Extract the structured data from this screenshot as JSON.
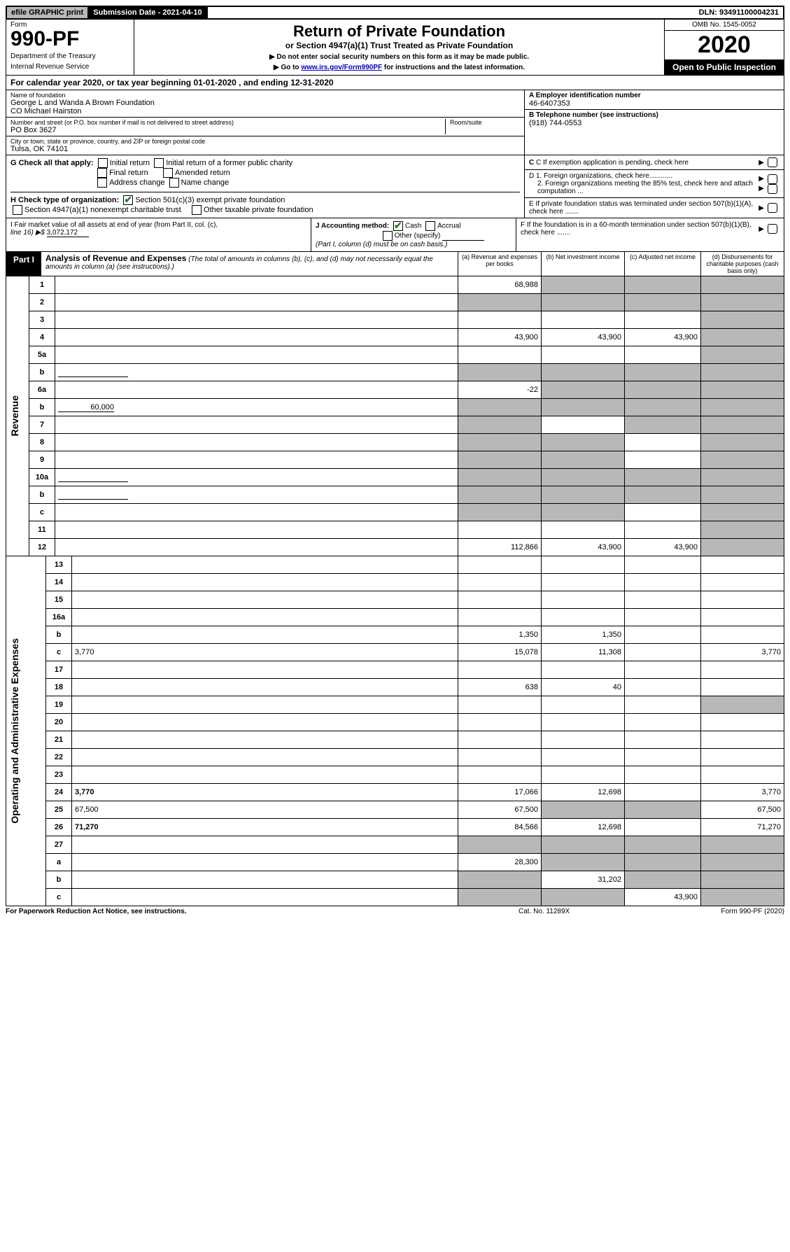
{
  "top": {
    "efile": "efile GRAPHIC print",
    "subdate_label": "Submission Date - 2021-04-10",
    "dln": "DLN: 93491100004231"
  },
  "header": {
    "form_label": "Form",
    "form_number": "990-PF",
    "dept1": "Department of the Treasury",
    "dept2": "Internal Revenue Service",
    "title": "Return of Private Foundation",
    "subtitle": "or Section 4947(a)(1) Trust Treated as Private Foundation",
    "instr1": "▶ Do not enter social security numbers on this form as it may be made public.",
    "instr2_pre": "▶ Go to ",
    "instr2_link": "www.irs.gov/Form990PF",
    "instr2_post": " for instructions and the latest information.",
    "omb": "OMB No. 1545-0052",
    "year": "2020",
    "open": "Open to Public Inspection"
  },
  "cal": {
    "text_pre": "For calendar year 2020, or tax year beginning ",
    "begin": "01-01-2020",
    "text_mid": " , and ending ",
    "end": "12-31-2020"
  },
  "id": {
    "name_label": "Name of foundation",
    "name1": "George L and Wanda A Brown Foundation",
    "name2": "CO Michael Hairston",
    "addr_label": "Number and street (or P.O. box number if mail is not delivered to street address)",
    "addr": "PO Box 3627",
    "room_label": "Room/suite",
    "city_label": "City or town, state or province, country, and ZIP or foreign postal code",
    "city": "Tulsa, OK  74101",
    "ein_label": "A Employer identification number",
    "ein": "46-6407353",
    "tel_label": "B Telephone number (see instructions)",
    "tel": "(918) 744-0553",
    "c_label": "C If exemption application is pending, check here",
    "d1": "D 1. Foreign organizations, check here............",
    "d2": "2. Foreign organizations meeting the 85% test, check here and attach computation ...",
    "e": "E If private foundation status was terminated under section 507(b)(1)(A), check here .......",
    "f": "F If the foundation is in a 60-month termination under section 507(b)(1)(B), check here ......."
  },
  "g": {
    "label": "G Check all that apply:",
    "o1": "Initial return",
    "o2": "Initial return of a former public charity",
    "o3": "Final return",
    "o4": "Amended return",
    "o5": "Address change",
    "o6": "Name change"
  },
  "h": {
    "label": "H Check type of organization:",
    "o1": "Section 501(c)(3) exempt private foundation",
    "o2": "Section 4947(a)(1) nonexempt charitable trust",
    "o3": "Other taxable private foundation"
  },
  "i": {
    "label1": "I Fair market value of all assets at end of year (from Part II, col. (c),",
    "label2": "line 16) ▶$ ",
    "value": "3,072,172"
  },
  "j": {
    "label": "J Accounting method:",
    "o1": "Cash",
    "o2": "Accrual",
    "o3": "Other (specify)",
    "note": "(Part I, column (d) must be on cash basis.)"
  },
  "part1": {
    "label": "Part I",
    "title": "Analysis of Revenue and Expenses",
    "title_note": " (The total of amounts in columns (b), (c), and (d) may not necessarily equal the amounts in column (a) (see instructions).)",
    "col_a": "(a) Revenue and expenses per books",
    "col_b": "(b) Net investment income",
    "col_c": "(c) Adjusted net income",
    "col_d": "(d) Disbursements for charitable purposes (cash basis only)"
  },
  "revenue": {
    "vlabel": "Revenue",
    "rows": [
      {
        "n": "1",
        "d": "",
        "a": "68,988",
        "b": "",
        "c": "",
        "gb": true,
        "gc": true,
        "gd": true
      },
      {
        "n": "2",
        "d": "",
        "a": "",
        "b": "",
        "c": "",
        "gb": true,
        "gc": true,
        "gd": true,
        "ga": true
      },
      {
        "n": "3",
        "d": "",
        "a": "",
        "b": "",
        "c": "",
        "gd": true
      },
      {
        "n": "4",
        "d": "",
        "a": "43,900",
        "b": "43,900",
        "c": "43,900",
        "gd": true
      },
      {
        "n": "5a",
        "d": "",
        "a": "",
        "b": "",
        "c": "",
        "gd": true
      },
      {
        "n": "b",
        "d": "",
        "a": "",
        "b": "",
        "c": "",
        "ga": true,
        "gb": true,
        "gc": true,
        "gd": true,
        "blank": true
      },
      {
        "n": "6a",
        "d": "",
        "a": "-22",
        "b": "",
        "c": "",
        "gb": true,
        "gc": true,
        "gd": true
      },
      {
        "n": "b",
        "d": "",
        "a": "",
        "b": "",
        "c": "",
        "ga": true,
        "gb": true,
        "gc": true,
        "gd": true,
        "inline": "60,000"
      },
      {
        "n": "7",
        "d": "",
        "a": "",
        "b": "",
        "c": "",
        "ga": true,
        "gc": true,
        "gd": true
      },
      {
        "n": "8",
        "d": "",
        "a": "",
        "b": "",
        "c": "",
        "ga": true,
        "gb": true,
        "gd": true
      },
      {
        "n": "9",
        "d": "",
        "a": "",
        "b": "",
        "c": "",
        "ga": true,
        "gb": true,
        "gd": true
      },
      {
        "n": "10a",
        "d": "",
        "a": "",
        "b": "",
        "c": "",
        "ga": true,
        "gb": true,
        "gc": true,
        "gd": true,
        "blank": true
      },
      {
        "n": "b",
        "d": "",
        "a": "",
        "b": "",
        "c": "",
        "ga": true,
        "gb": true,
        "gc": true,
        "gd": true,
        "blank": true
      },
      {
        "n": "c",
        "d": "",
        "a": "",
        "b": "",
        "c": "",
        "ga": true,
        "gb": true,
        "gd": true
      },
      {
        "n": "11",
        "d": "",
        "a": "",
        "b": "",
        "c": "",
        "gd": true
      },
      {
        "n": "12",
        "d": "",
        "a": "112,866",
        "b": "43,900",
        "c": "43,900",
        "gd": true,
        "bold": true
      }
    ]
  },
  "expenses": {
    "vlabel": "Operating and Administrative Expenses",
    "rows": [
      {
        "n": "13",
        "d": "",
        "a": "",
        "b": "",
        "c": ""
      },
      {
        "n": "14",
        "d": "",
        "a": "",
        "b": "",
        "c": ""
      },
      {
        "n": "15",
        "d": "",
        "a": "",
        "b": "",
        "c": ""
      },
      {
        "n": "16a",
        "d": "",
        "a": "",
        "b": "",
        "c": ""
      },
      {
        "n": "b",
        "d": "",
        "a": "1,350",
        "b": "1,350",
        "c": ""
      },
      {
        "n": "c",
        "d": "3,770",
        "a": "15,078",
        "b": "11,308",
        "c": ""
      },
      {
        "n": "17",
        "d": "",
        "a": "",
        "b": "",
        "c": ""
      },
      {
        "n": "18",
        "d": "",
        "a": "638",
        "b": "40",
        "c": ""
      },
      {
        "n": "19",
        "d": "",
        "a": "",
        "b": "",
        "c": "",
        "gd": true
      },
      {
        "n": "20",
        "d": "",
        "a": "",
        "b": "",
        "c": ""
      },
      {
        "n": "21",
        "d": "",
        "a": "",
        "b": "",
        "c": ""
      },
      {
        "n": "22",
        "d": "",
        "a": "",
        "b": "",
        "c": ""
      },
      {
        "n": "23",
        "d": "",
        "a": "",
        "b": "",
        "c": ""
      },
      {
        "n": "24",
        "d": "3,770",
        "a": "17,066",
        "b": "12,698",
        "c": "",
        "bold": true
      },
      {
        "n": "25",
        "d": "67,500",
        "a": "67,500",
        "b": "",
        "c": "",
        "gb": true,
        "gc": true
      },
      {
        "n": "26",
        "d": "71,270",
        "a": "84,566",
        "b": "12,698",
        "c": "",
        "bold": true
      },
      {
        "n": "27",
        "d": "",
        "a": "",
        "b": "",
        "c": "",
        "ga": true,
        "gb": true,
        "gc": true,
        "gd": true
      },
      {
        "n": "a",
        "d": "",
        "a": "28,300",
        "b": "",
        "c": "",
        "gb": true,
        "gc": true,
        "gd": true,
        "bold": true
      },
      {
        "n": "b",
        "d": "",
        "a": "",
        "b": "31,202",
        "c": "",
        "ga": true,
        "gc": true,
        "gd": true,
        "bold": true
      },
      {
        "n": "c",
        "d": "",
        "a": "",
        "b": "",
        "c": "43,900",
        "ga": true,
        "gb": true,
        "gd": true,
        "bold": true
      }
    ]
  },
  "footer": {
    "left": "For Paperwork Reduction Act Notice, see instructions.",
    "center": "Cat. No. 11289X",
    "right": "Form 990-PF (2020)"
  }
}
